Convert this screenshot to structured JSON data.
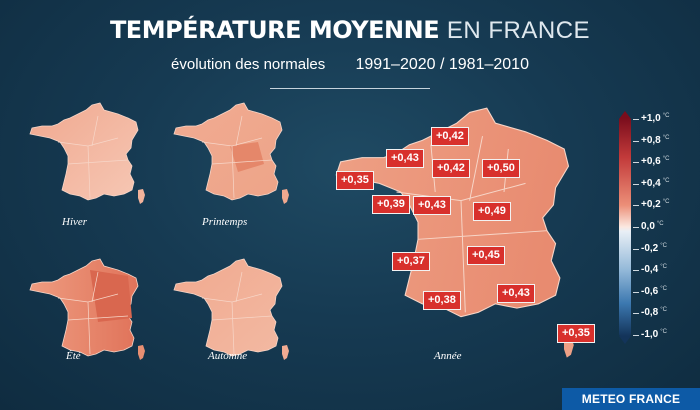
{
  "title": {
    "bold": "TEMPÉRATURE MOYENNE",
    "light": "EN FRANCE"
  },
  "subtitle": {
    "left": "évolution des normales",
    "right": "1991–2020 / 1981–2010"
  },
  "seasons": [
    {
      "label": "Hiver"
    },
    {
      "label": "Printemps"
    },
    {
      "label": "Été"
    },
    {
      "label": "Automne"
    }
  ],
  "main_map": {
    "label": "Année"
  },
  "region_values": [
    "+0,42",
    "+0,43",
    "+0,42",
    "+0,50",
    "+0,35",
    "+0,39",
    "+0,43",
    "+0,49",
    "+0,37",
    "+0,45",
    "+0,38",
    "+0,43",
    "+0,35"
  ],
  "legend": {
    "unit": "°C",
    "ticks": [
      "+1,0",
      "+0,8",
      "+0,6",
      "+0,4",
      "+0,2",
      "0,0",
      "-0,2",
      "-0,4",
      "-0,6",
      "-0,8",
      "-1,0"
    ],
    "colors": {
      "max": "#7a0d1c",
      "mid": "#fbe8e0",
      "min": "#13345a"
    }
  },
  "brand": "METEO FRANCE",
  "colors": {
    "background": "#163a52",
    "badge": "#d8302c",
    "brand_bar": "#0d5aa6"
  }
}
